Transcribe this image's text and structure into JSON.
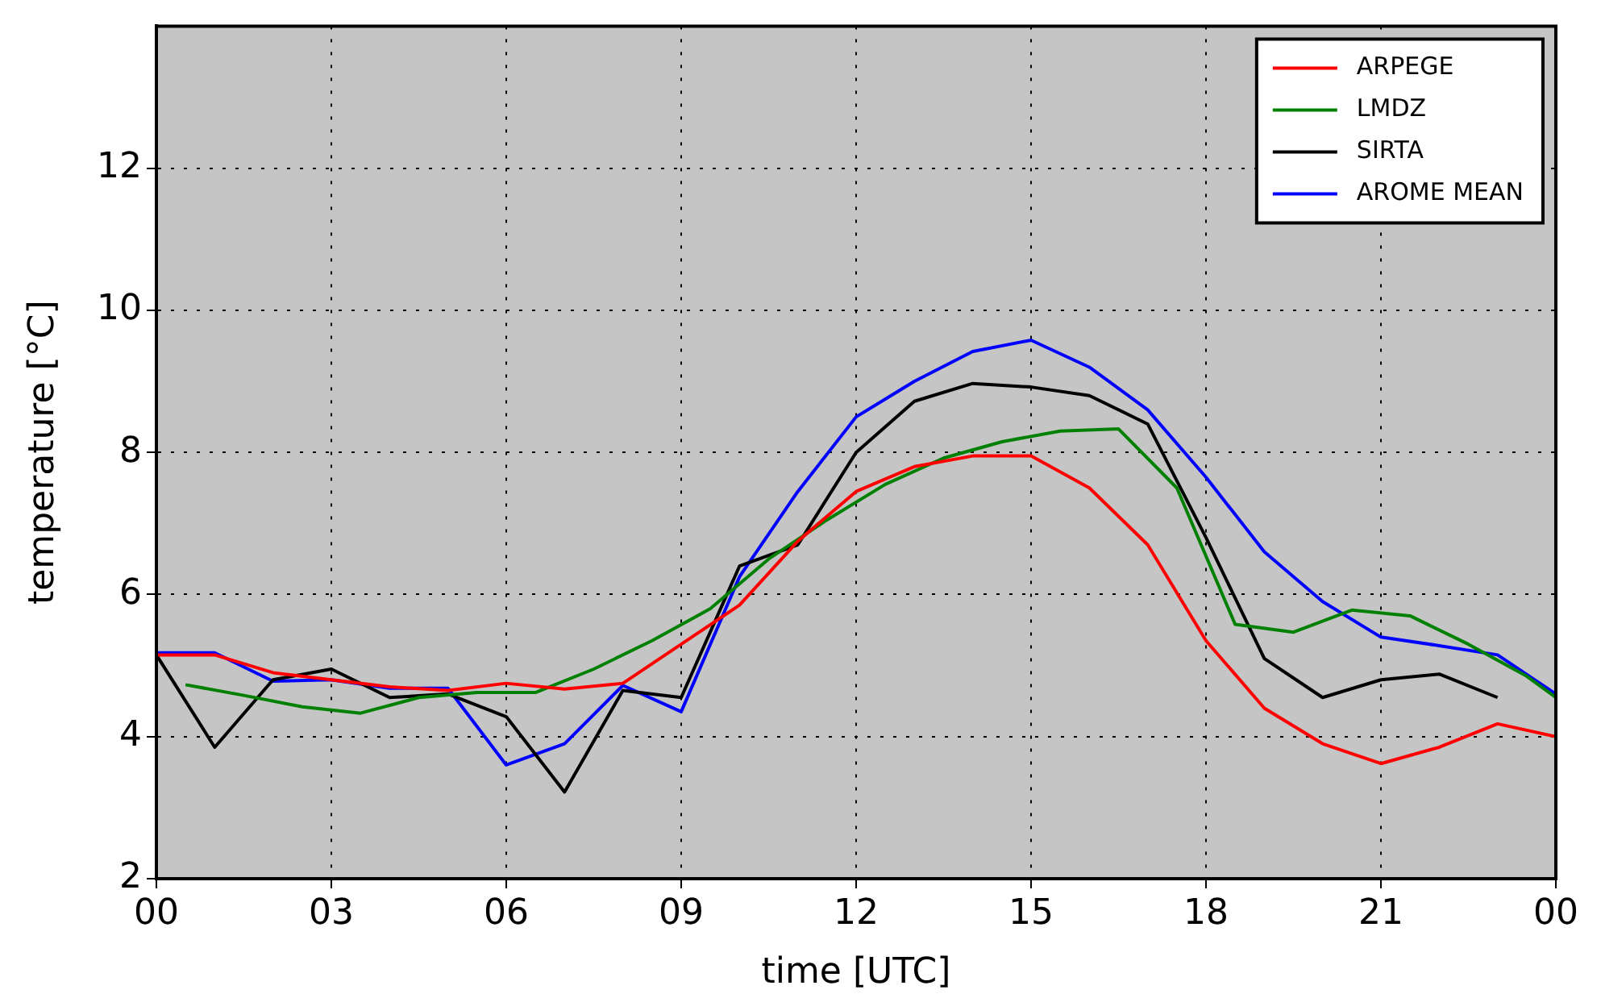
{
  "chart_data": {
    "type": "line",
    "xlabel": "time [UTC]",
    "ylabel": "temperature [°C]",
    "xlim": [
      0,
      24
    ],
    "ylim": [
      2,
      14
    ],
    "xticks": [
      {
        "value": 0,
        "label": "00"
      },
      {
        "value": 3,
        "label": "03"
      },
      {
        "value": 6,
        "label": "06"
      },
      {
        "value": 9,
        "label": "09"
      },
      {
        "value": 12,
        "label": "12"
      },
      {
        "value": 15,
        "label": "15"
      },
      {
        "value": 18,
        "label": "18"
      },
      {
        "value": 21,
        "label": "21"
      },
      {
        "value": 24,
        "label": "00"
      }
    ],
    "yticks": [
      2,
      4,
      6,
      8,
      10,
      12
    ],
    "grid": true,
    "legend": "top right",
    "marker": "none",
    "line_style": "solid",
    "series": [
      {
        "name": "ARPEGE",
        "color": "#ff0000",
        "x": [
          0,
          1,
          2,
          3,
          4,
          5,
          6,
          7,
          8,
          9,
          10,
          11,
          12,
          13,
          14,
          15,
          16,
          17,
          18,
          19,
          20,
          21,
          22,
          23,
          24
        ],
        "values": [
          5.15,
          5.15,
          4.9,
          4.8,
          4.7,
          4.65,
          4.75,
          4.67,
          4.75,
          5.3,
          5.85,
          6.75,
          7.45,
          7.8,
          7.95,
          7.95,
          7.5,
          6.7,
          5.35,
          4.4,
          3.9,
          3.62,
          3.85,
          4.18,
          4.0
        ]
      },
      {
        "name": "LMDZ",
        "color": "#008000",
        "x": [
          0.5,
          1.5,
          2.5,
          3.5,
          4.5,
          5.5,
          6.5,
          7.5,
          8.5,
          9.5,
          10.5,
          11.5,
          12.5,
          13.5,
          14.5,
          15.5,
          16.5,
          17.5,
          18.5,
          19.5,
          20.5,
          21.5,
          22.5,
          23.5,
          24
        ],
        "values": [
          4.73,
          4.58,
          4.42,
          4.33,
          4.55,
          4.62,
          4.62,
          4.95,
          5.35,
          5.8,
          6.5,
          7.05,
          7.55,
          7.92,
          8.15,
          8.3,
          8.33,
          7.5,
          5.58,
          5.47,
          5.78,
          5.7,
          5.3,
          4.85,
          4.55
        ]
      },
      {
        "name": "SIRTA",
        "color": "#000000",
        "x": [
          0,
          1,
          2,
          3,
          4,
          5,
          6,
          7,
          8,
          9,
          10,
          11,
          12,
          13,
          14,
          15,
          16,
          17,
          18,
          19,
          20,
          21,
          22,
          23
        ],
        "values": [
          5.15,
          3.85,
          4.8,
          4.95,
          4.55,
          4.6,
          4.28,
          3.22,
          4.65,
          4.55,
          6.4,
          6.7,
          8.0,
          8.72,
          8.97,
          8.92,
          8.8,
          8.4,
          6.8,
          5.1,
          4.55,
          4.8,
          4.88,
          4.55
        ]
      },
      {
        "name": "AROME MEAN",
        "color": "#0000ff",
        "x": [
          0,
          1,
          2,
          3,
          4,
          5,
          6,
          7,
          8,
          9,
          10,
          11,
          12,
          13,
          14,
          15,
          16,
          17,
          18,
          19,
          20,
          21,
          22,
          23,
          24
        ],
        "values": [
          5.18,
          5.18,
          4.78,
          4.8,
          4.68,
          4.68,
          3.6,
          3.9,
          4.72,
          4.35,
          6.25,
          7.45,
          8.5,
          9.0,
          9.42,
          9.58,
          9.2,
          8.6,
          7.65,
          6.6,
          5.9,
          5.4,
          5.28,
          5.15,
          4.6
        ]
      }
    ]
  }
}
